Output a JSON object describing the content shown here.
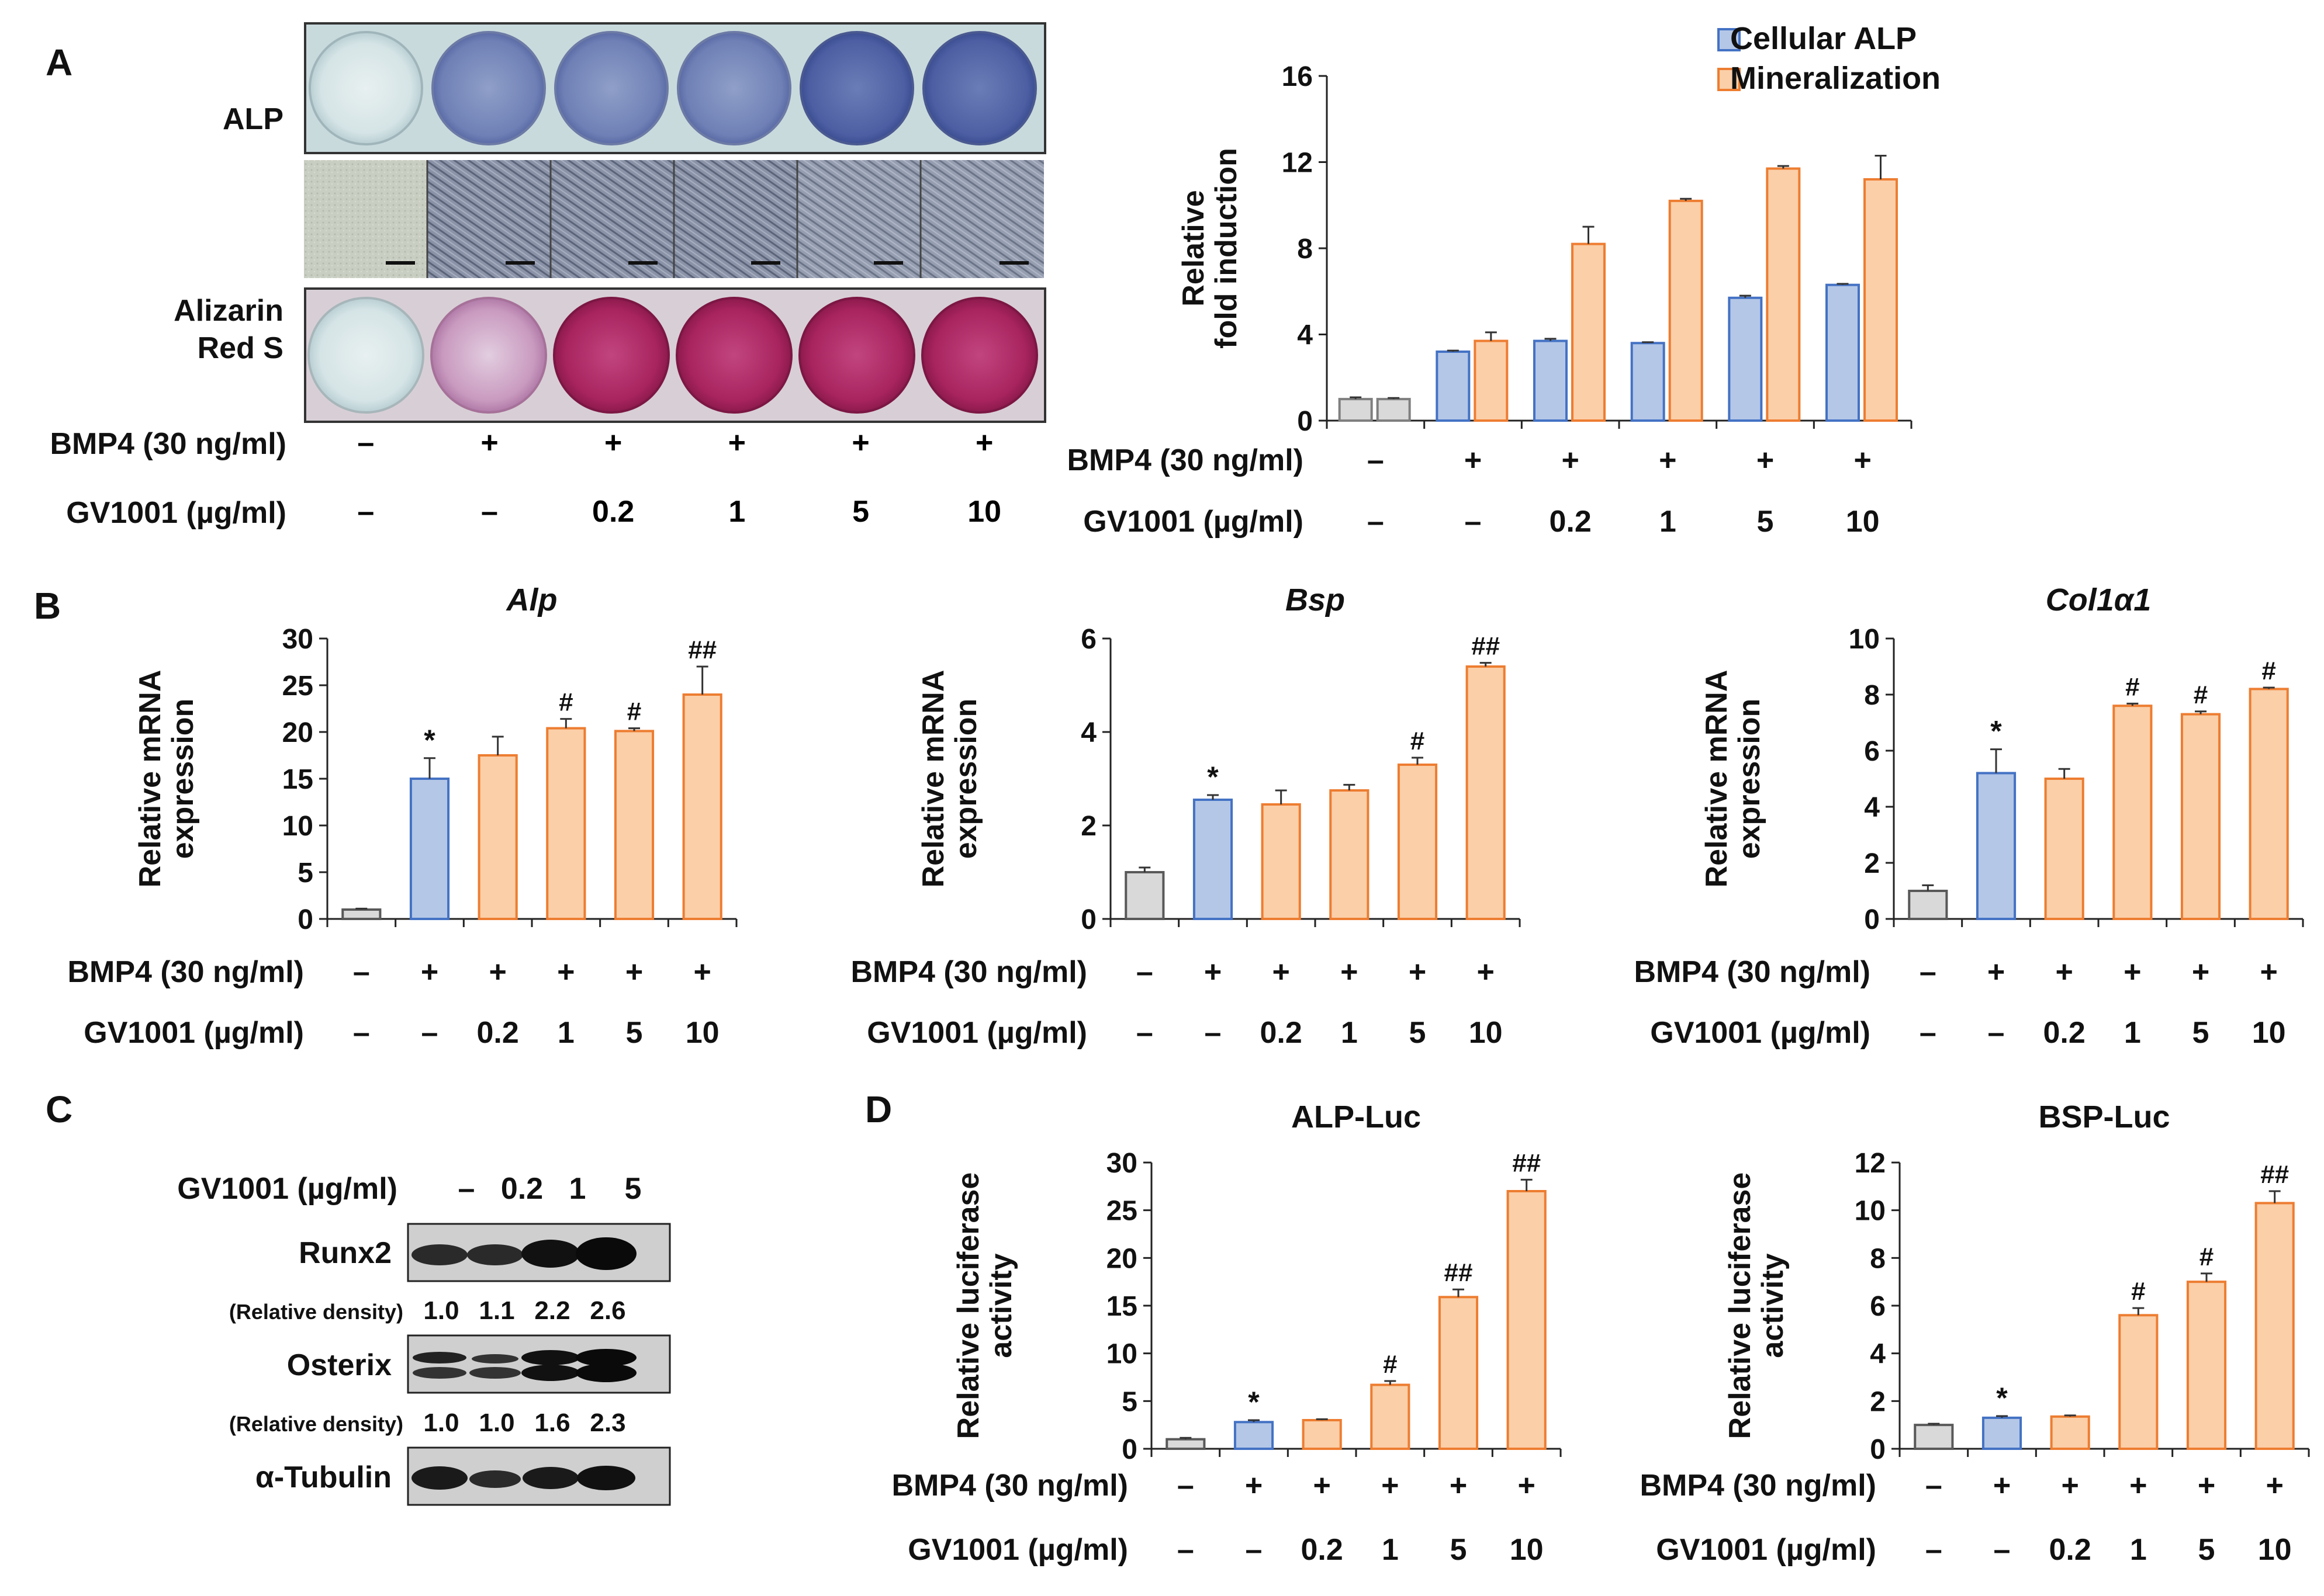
{
  "panels": {
    "A": "A",
    "B": "B",
    "C": "C",
    "D": "D"
  },
  "colors": {
    "gray": "#d9d9d9",
    "blue": "#b4c7e7",
    "blue_edge": "#4472c4",
    "orange": "#fbcfa8",
    "orange_edge": "#ed7d31",
    "dark": "#262626"
  },
  "panelA": {
    "row_alp": "ALP",
    "row_alizarin_1": "Alizarin",
    "row_alizarin_2": "Red S",
    "bmp4_label": "BMP4 (30 ng/ml)",
    "gv_label": "GV1001 (µg/ml)",
    "bmp4": [
      "–",
      "+",
      "+",
      "+",
      "+",
      "+"
    ],
    "gv": [
      "–",
      "–",
      "0.2",
      "1",
      "5",
      "10"
    ]
  },
  "panelC": {
    "gv_label": "GV1001 (µg/ml)",
    "gv": [
      "–",
      "0.2",
      "1",
      "5"
    ],
    "bands": [
      {
        "label": "Runx2",
        "density_label": "(Relative density)",
        "density": [
          "1.0",
          "1.1",
          "2.2",
          "2.6"
        ]
      },
      {
        "label": "Osterix",
        "density_label": "(Relative density)",
        "density": [
          "1.0",
          "1.0",
          "1.6",
          "2.3"
        ]
      },
      {
        "label": "α-Tubulin"
      }
    ]
  },
  "chart_data": [
    {
      "id": "A-bar",
      "type": "bar",
      "title": "",
      "ylabel": [
        "Relative",
        "fold induction"
      ],
      "ylim": [
        0,
        16
      ],
      "yticks": [
        0,
        4,
        8,
        12,
        16
      ],
      "legend": [
        "Cellular ALP",
        "Mineralization"
      ],
      "legend_position": "top",
      "bmp4_label": "BMP4 (30 ng/ml)",
      "gv_label": "GV1001 (µg/ml)",
      "bmp4": [
        "–",
        "+",
        "+",
        "+",
        "+",
        "+"
      ],
      "gv": [
        "–",
        "–",
        "0.2",
        "1",
        "5",
        "10"
      ],
      "series": [
        {
          "name": "Cellular ALP",
          "values": [
            1.0,
            3.2,
            3.7,
            3.6,
            5.7,
            6.3
          ],
          "errors": [
            0.08,
            0.05,
            0.1,
            0.04,
            0.1,
            0.05
          ]
        },
        {
          "name": "Mineralization",
          "values": [
            1.0,
            3.7,
            8.2,
            10.2,
            11.7,
            11.2
          ],
          "errors": [
            0.05,
            0.4,
            0.8,
            0.1,
            0.12,
            1.1
          ]
        }
      ]
    },
    {
      "id": "B-alp",
      "type": "bar",
      "title": "Alp",
      "ylabel": [
        "Relative mRNA",
        "expression"
      ],
      "ylim": [
        0,
        30
      ],
      "yticks": [
        0,
        5,
        10,
        15,
        20,
        25,
        30
      ],
      "bmp4_label": "BMP4 (30 ng/ml)",
      "gv_label": "GV1001 (µg/ml)",
      "bmp4": [
        "–",
        "+",
        "+",
        "+",
        "+",
        "+"
      ],
      "gv": [
        "–",
        "–",
        "0.2",
        "1",
        "5",
        "10"
      ],
      "values": [
        1.0,
        15.0,
        17.5,
        20.4,
        20.1,
        24.0
      ],
      "errors": [
        0.1,
        2.2,
        2.0,
        1.0,
        0.3,
        3.0
      ],
      "annotations": [
        "",
        "*",
        "",
        "#",
        "#",
        "##"
      ]
    },
    {
      "id": "B-bsp",
      "type": "bar",
      "title": "Bsp",
      "ylabel": [
        "Relative mRNA",
        "expression"
      ],
      "ylim": [
        0,
        6
      ],
      "yticks": [
        0,
        2,
        4,
        6
      ],
      "bmp4_label": "BMP4 (30 ng/ml)",
      "gv_label": "GV1001 (µg/ml)",
      "bmp4": [
        "–",
        "+",
        "+",
        "+",
        "+",
        "+"
      ],
      "gv": [
        "–",
        "–",
        "0.2",
        "1",
        "5",
        "10"
      ],
      "values": [
        1.0,
        2.55,
        2.45,
        2.75,
        3.3,
        5.4
      ],
      "errors": [
        0.1,
        0.1,
        0.3,
        0.12,
        0.15,
        0.08
      ],
      "annotations": [
        "",
        "*",
        "",
        "",
        "#",
        "##"
      ]
    },
    {
      "id": "B-col",
      "type": "bar",
      "title": "Col1α1",
      "ylabel": [
        "Relative mRNA",
        "expression"
      ],
      "ylim": [
        0,
        10
      ],
      "yticks": [
        0,
        2,
        4,
        6,
        8,
        10
      ],
      "bmp4_label": "BMP4 (30 ng/ml)",
      "gv_label": "GV1001 (µg/ml)",
      "bmp4": [
        "–",
        "+",
        "+",
        "+",
        "+",
        "+"
      ],
      "gv": [
        "–",
        "–",
        "0.2",
        "1",
        "5",
        "10"
      ],
      "values": [
        1.0,
        5.2,
        5.0,
        7.6,
        7.3,
        8.2
      ],
      "errors": [
        0.2,
        0.85,
        0.35,
        0.08,
        0.1,
        0.05
      ],
      "annotations": [
        "",
        "*",
        "",
        "#",
        "#",
        "#"
      ]
    },
    {
      "id": "D-alpluc",
      "type": "bar",
      "title": "ALP-Luc",
      "ylabel": [
        "Relative luciferase",
        "activity"
      ],
      "ylim": [
        0,
        30
      ],
      "yticks": [
        0,
        5,
        10,
        15,
        20,
        25,
        30
      ],
      "bmp4_label": "BMP4 (30 ng/ml)",
      "gv_label": "GV1001 (µg/ml)",
      "bmp4": [
        "–",
        "+",
        "+",
        "+",
        "+",
        "+"
      ],
      "gv": [
        "–",
        "–",
        "0.2",
        "1",
        "5",
        "10"
      ],
      "values": [
        1.0,
        2.8,
        3.0,
        6.7,
        15.9,
        27.0
      ],
      "errors": [
        0.15,
        0.2,
        0.1,
        0.4,
        0.8,
        1.2
      ],
      "annotations": [
        "",
        "*",
        "",
        "#",
        "##",
        "##"
      ]
    },
    {
      "id": "D-bspluc",
      "type": "bar",
      "title": "BSP-Luc",
      "ylabel": [
        "Relative luciferase",
        "activity"
      ],
      "ylim": [
        0,
        12
      ],
      "yticks": [
        0,
        2,
        4,
        6,
        8,
        10,
        12
      ],
      "bmp4_label": "BMP4 (30 ng/ml)",
      "gv_label": "GV1001 (µg/ml)",
      "bmp4": [
        "–",
        "+",
        "+",
        "+",
        "+",
        "+"
      ],
      "gv": [
        "–",
        "–",
        "0.2",
        "1",
        "5",
        "10"
      ],
      "values": [
        1.0,
        1.3,
        1.35,
        5.6,
        7.0,
        10.3
      ],
      "errors": [
        0.05,
        0.07,
        0.05,
        0.3,
        0.35,
        0.5
      ],
      "annotations": [
        "",
        "*",
        "",
        "#",
        "#",
        "##"
      ]
    }
  ]
}
